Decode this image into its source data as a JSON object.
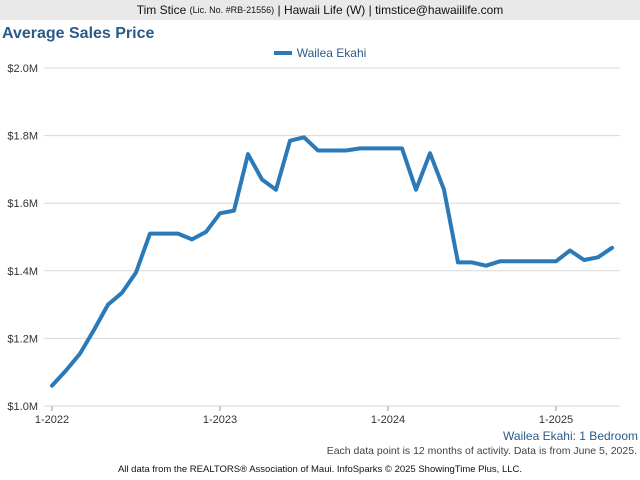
{
  "header": {
    "agent_name": "Tim Stice",
    "license": "(Lic. No. #RB-21556)",
    "rest": "| Hawaii Life (W) | timstice@hawaiilife.com"
  },
  "colors": {
    "line": "#2a79b8",
    "title": "#2a5b8a",
    "grid": "#d9d9d9"
  },
  "chart_data": {
    "type": "line",
    "title": "Average Sales Price",
    "ylim": [
      1000000,
      2000000
    ],
    "y_ticks": [
      1000000,
      1200000,
      1400000,
      1600000,
      1800000,
      2000000
    ],
    "y_tick_labels": [
      "$1.0M",
      "$1.2M",
      "$1.4M",
      "$1.6M",
      "$1.8M",
      "$2.0M"
    ],
    "x_tick_labels": [
      "1-2022",
      "1-2023",
      "1-2024",
      "1-2025"
    ],
    "grid": true,
    "legend_position": "top-center",
    "x": [
      "2022-01",
      "2022-02",
      "2022-03",
      "2022-04",
      "2022-05",
      "2022-06",
      "2022-07",
      "2022-08",
      "2022-09",
      "2022-10",
      "2022-11",
      "2022-12",
      "2023-01",
      "2023-02",
      "2023-03",
      "2023-04",
      "2023-05",
      "2023-06",
      "2023-07",
      "2023-08",
      "2023-09",
      "2023-10",
      "2023-11",
      "2023-12",
      "2024-01",
      "2024-02",
      "2024-03",
      "2024-04",
      "2024-05",
      "2024-06",
      "2024-07",
      "2024-08",
      "2024-09",
      "2024-10",
      "2024-11",
      "2024-12",
      "2025-01",
      "2025-02",
      "2025-03",
      "2025-04",
      "2025-05"
    ],
    "series": [
      {
        "name": "Wailea Ekahi",
        "values": [
          1060000,
          1105000,
          1155000,
          1225000,
          1300000,
          1335000,
          1395000,
          1510000,
          1510000,
          1510000,
          1493000,
          1515000,
          1570000,
          1578000,
          1745000,
          1670000,
          1640000,
          1785000,
          1795000,
          1756000,
          1756000,
          1756000,
          1762000,
          1762000,
          1762000,
          1762000,
          1640000,
          1748000,
          1640000,
          1425000,
          1425000,
          1415000,
          1428000,
          1428000,
          1428000,
          1428000,
          1428000,
          1460000,
          1432000,
          1440000,
          1468000
        ]
      }
    ]
  },
  "series_footer_label": "Wailea Ekahi: 1 Bedroom",
  "note": "Each data point is 12 months of activity. Data is from June 5, 2025.",
  "footer": "All data from the REALTORS® Association of Maui. InfoSparks © 2025 ShowingTime Plus, LLC."
}
